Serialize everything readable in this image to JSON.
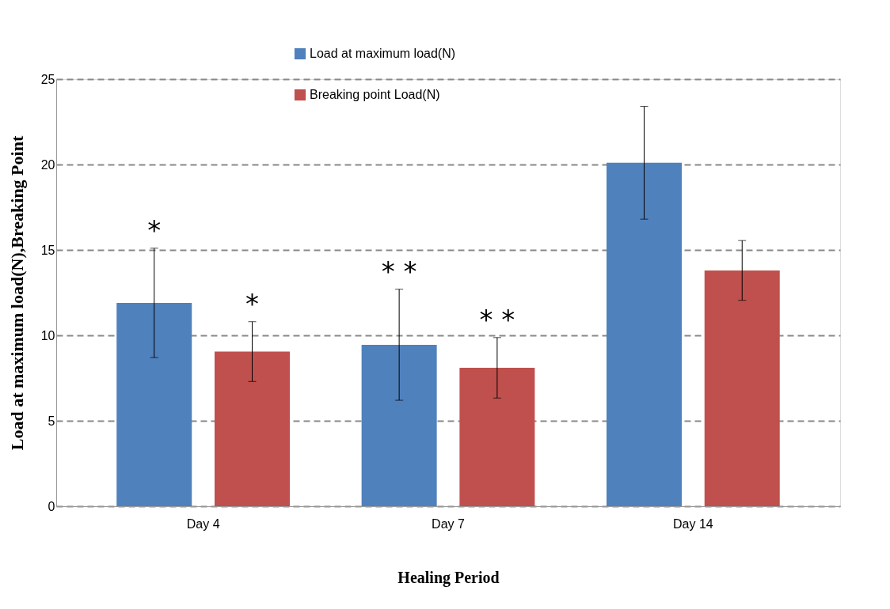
{
  "chart_data": {
    "type": "bar",
    "xlabel": "Healing Period",
    "ylabel": "Load at maximum load(N),Breaking Point",
    "categories": [
      "Day 4",
      "Day 7",
      "Day 14"
    ],
    "series": [
      {
        "name": "Load at maximum load(N)",
        "color": "#4f81bd",
        "values": [
          11.9,
          9.45,
          20.1
        ],
        "errors": [
          3.2,
          3.25,
          3.3
        ]
      },
      {
        "name": "Breaking point Load(N)",
        "color": "#c0504d",
        "values": [
          9.05,
          8.1,
          13.8
        ],
        "errors": [
          1.75,
          1.77,
          1.75
        ]
      }
    ],
    "ylim": [
      0,
      25
    ],
    "yticks": [
      0,
      5,
      10,
      15,
      20,
      25
    ],
    "grid": "y",
    "legend": "top",
    "annotations": [
      "*",
      "*",
      "* *",
      "* *"
    ]
  }
}
